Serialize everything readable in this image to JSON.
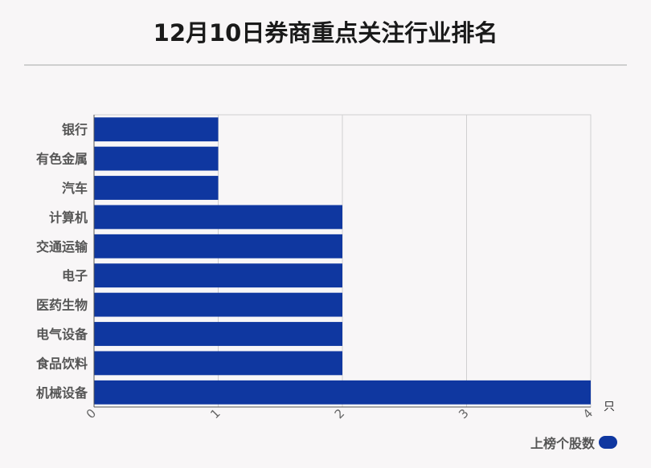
{
  "title": "12月10日券商重点关注行业排名",
  "colors": {
    "bar": "#0f37a0",
    "grid": "#d0d0d0",
    "axis": "#555555",
    "label": "#555555"
  },
  "chart_data": {
    "type": "bar",
    "orientation": "horizontal",
    "categories": [
      "银行",
      "有色金属",
      "汽车",
      "计算机",
      "交通运输",
      "电子",
      "医药生物",
      "电气设备",
      "食品饮料",
      "机械设备"
    ],
    "series": [
      {
        "name": "上榜个股数",
        "values": [
          1,
          1,
          1,
          2,
          2,
          2,
          2,
          2,
          2,
          4
        ]
      }
    ],
    "xlim": [
      0,
      4
    ],
    "xticks": [
      "0",
      "1",
      "2",
      "3",
      "4"
    ],
    "xunit": "只",
    "grid": true,
    "legend": "bottom-right"
  }
}
